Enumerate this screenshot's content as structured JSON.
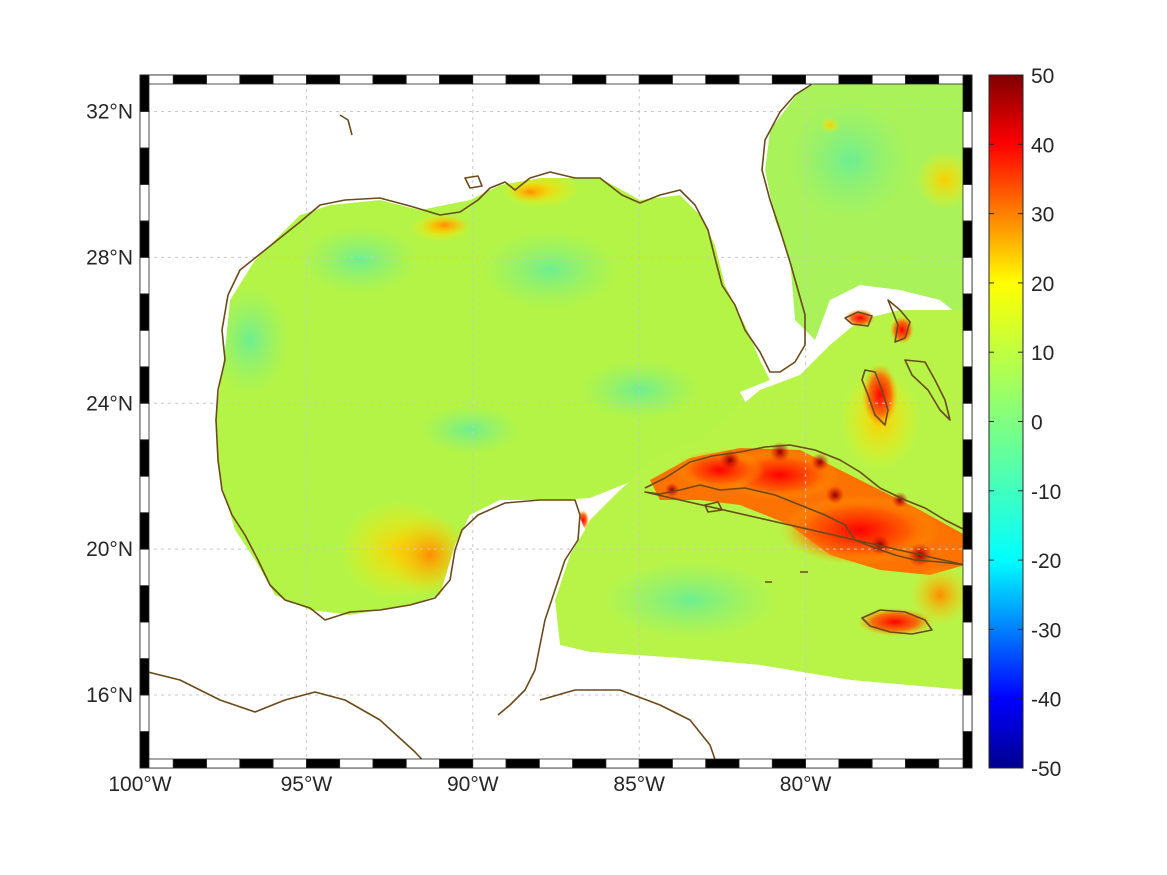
{
  "map": {
    "region": "Gulf of Mexico and northwestern Caribbean",
    "projection": "equirectangular",
    "lon_range": [
      -100,
      -75
    ],
    "lat_range": [
      14,
      33
    ],
    "lon_ticks": [
      {
        "value": -100,
        "label": "100°W"
      },
      {
        "value": -95,
        "label": "95°W"
      },
      {
        "value": -90,
        "label": "90°W"
      },
      {
        "value": -85,
        "label": "85°W"
      },
      {
        "value": -80,
        "label": "80°W"
      }
    ],
    "lat_ticks": [
      {
        "value": 32,
        "label": "32°N"
      },
      {
        "value": 28,
        "label": "28°N"
      },
      {
        "value": 24,
        "label": "24°N"
      },
      {
        "value": 20,
        "label": "20°N"
      },
      {
        "value": 16,
        "label": "16°N"
      }
    ],
    "frame": "alternating black-and-white degree frame",
    "grid": true,
    "coastline_color": "#6b4a1a",
    "field": {
      "background_level": "about 0 to 10",
      "hotspots": [
        {
          "area": "Cuba",
          "level": "30 to 50"
        },
        {
          "area": "Jamaica",
          "level": "about 30"
        },
        {
          "area": "Bahamas",
          "level": "30 to 40"
        },
        {
          "area": "Bay of Campeche",
          "level": "about 15 to 20"
        },
        {
          "area": "Mississippi delta coast",
          "level": "about 20"
        }
      ]
    }
  },
  "colorbar": {
    "colormap": "jet",
    "min": -50,
    "max": 50,
    "ticks": [
      {
        "value": 50,
        "label": "50"
      },
      {
        "value": 40,
        "label": "40"
      },
      {
        "value": 30,
        "label": "30"
      },
      {
        "value": 20,
        "label": "20"
      },
      {
        "value": 10,
        "label": "10"
      },
      {
        "value": 0,
        "label": "0"
      },
      {
        "value": -10,
        "label": "-10"
      },
      {
        "value": -20,
        "label": "-20"
      },
      {
        "value": -30,
        "label": "-30"
      },
      {
        "value": -40,
        "label": "-40"
      },
      {
        "value": -50,
        "label": "-50"
      }
    ],
    "colors": {
      "c_50": "#800000",
      "c_40": "#ff0000",
      "c_20": "#ffff00",
      "c_0": "#80ff80",
      "c_m20": "#00ffff",
      "c_m40": "#0000ff",
      "c_m50": "#00008f"
    }
  }
}
